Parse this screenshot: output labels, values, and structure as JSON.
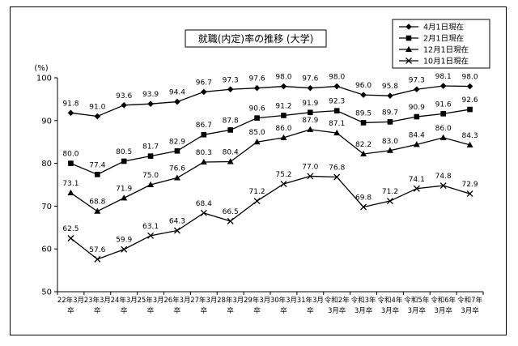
{
  "chart_data": {
    "type": "line",
    "title": "就職(内定)率の推移 (大学)",
    "ylabel": "(%)",
    "xlabel": "",
    "ylim": [
      50,
      100
    ],
    "yticks": [
      50,
      60,
      70,
      80,
      90,
      100
    ],
    "grid": false,
    "legend_position": "top-right",
    "categories": [
      [
        "22年3月",
        "卒"
      ],
      [
        "23年3月",
        "卒"
      ],
      [
        "24年3月",
        "卒"
      ],
      [
        "25年3月",
        "卒"
      ],
      [
        "26年3月",
        "卒"
      ],
      [
        "27年3月",
        "卒"
      ],
      [
        "28年3月",
        "卒"
      ],
      [
        "29年3月",
        "卒"
      ],
      [
        "30年3月",
        "卒"
      ],
      [
        "31年3月",
        "卒"
      ],
      [
        "令和2年",
        "3月卒"
      ],
      [
        "令和3年",
        "3月卒"
      ],
      [
        "令和4年",
        "3月卒"
      ],
      [
        "令和5年",
        "3月卒"
      ],
      [
        "令和6年",
        "3月卒"
      ],
      [
        "令和7年",
        "3月卒"
      ]
    ],
    "series": [
      {
        "name": "4月1日現在",
        "marker": "diamond",
        "values": [
          91.8,
          91.0,
          93.6,
          93.9,
          94.4,
          96.7,
          97.3,
          97.6,
          98.0,
          97.6,
          98.0,
          96.0,
          95.8,
          97.3,
          98.1,
          98.0
        ]
      },
      {
        "name": "2月1日現在",
        "marker": "square",
        "values": [
          80.0,
          77.4,
          80.5,
          81.7,
          82.9,
          86.7,
          87.8,
          90.6,
          91.2,
          91.9,
          92.3,
          89.5,
          89.7,
          90.9,
          91.6,
          92.6
        ]
      },
      {
        "name": "12月1日現在",
        "marker": "triangle",
        "values": [
          73.1,
          68.8,
          71.9,
          75.0,
          76.6,
          80.3,
          80.4,
          85.0,
          86.0,
          87.9,
          87.1,
          82.2,
          83.0,
          84.4,
          86.0,
          84.3
        ]
      },
      {
        "name": "10月1日現在",
        "marker": "x",
        "values": [
          62.5,
          57.6,
          59.9,
          63.1,
          64.3,
          68.4,
          66.5,
          71.2,
          75.2,
          77.0,
          76.8,
          69.8,
          71.2,
          74.1,
          74.8,
          72.9
        ]
      }
    ]
  }
}
